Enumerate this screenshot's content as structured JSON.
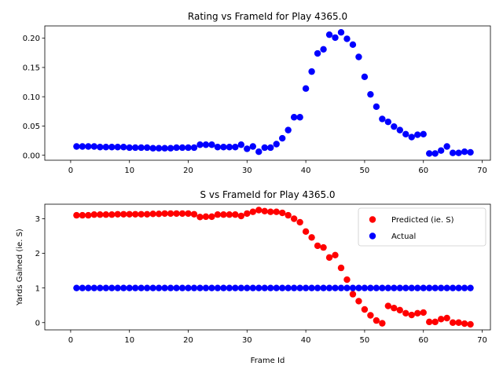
{
  "chart_data": [
    {
      "type": "scatter",
      "title": "Rating vs FrameId for Play 4365.0",
      "xlabel": "",
      "ylabel": "",
      "xlim": [
        -4.4,
        71.4
      ],
      "ylim": [
        -0.0085,
        0.221
      ],
      "xticks": [
        0,
        10,
        20,
        30,
        40,
        50,
        60,
        70
      ],
      "yticks": [
        0.0,
        0.05,
        0.1,
        0.15,
        0.2
      ],
      "ytick_labels": [
        "0.00",
        "0.05",
        "0.10",
        "0.15",
        "0.20"
      ],
      "grid": false,
      "series": [
        {
          "color": "#0000ff",
          "x": [
            1,
            2,
            3,
            4,
            5,
            6,
            7,
            8,
            9,
            10,
            11,
            12,
            13,
            14,
            15,
            16,
            17,
            18,
            19,
            20,
            21,
            22,
            23,
            24,
            25,
            26,
            27,
            28,
            29,
            30,
            31,
            32,
            33,
            34,
            35,
            36,
            37,
            38,
            39,
            40,
            41,
            42,
            43,
            44,
            45,
            46,
            47,
            48,
            49,
            50,
            51,
            52,
            53,
            54,
            55,
            56,
            57,
            58,
            59,
            60,
            61,
            62,
            63,
            64,
            65,
            66,
            67,
            68
          ],
          "y": [
            0.015,
            0.015,
            0.015,
            0.015,
            0.014,
            0.014,
            0.014,
            0.014,
            0.014,
            0.013,
            0.013,
            0.013,
            0.013,
            0.012,
            0.012,
            0.012,
            0.012,
            0.013,
            0.013,
            0.013,
            0.013,
            0.018,
            0.018,
            0.018,
            0.014,
            0.014,
            0.014,
            0.014,
            0.018,
            0.011,
            0.015,
            0.006,
            0.013,
            0.013,
            0.019,
            0.029,
            0.043,
            0.065,
            0.065,
            0.114,
            0.143,
            0.174,
            0.181,
            0.206,
            0.201,
            0.21,
            0.199,
            0.189,
            0.168,
            0.134,
            0.104,
            0.083,
            0.062,
            0.057,
            0.049,
            0.043,
            0.036,
            0.031,
            0.035,
            0.036,
            0.003,
            0.003,
            0.008,
            0.015,
            0.004,
            0.004,
            0.006,
            0.005
          ]
        }
      ]
    },
    {
      "type": "scatter",
      "title": "S vs FrameId for Play 4365.0",
      "xlabel": "Frame Id",
      "ylabel": "Yards Gained (ie. S)",
      "xlim": [
        -4.4,
        71.4
      ],
      "ylim": [
        -0.21,
        3.42
      ],
      "xticks": [
        0,
        10,
        20,
        30,
        40,
        50,
        60,
        70
      ],
      "yticks": [
        0,
        1,
        2,
        3
      ],
      "ytick_labels": [
        "0",
        "1",
        "2",
        "3"
      ],
      "grid": false,
      "legend_position": "top-right",
      "series": [
        {
          "name": "Predicted (ie. S)",
          "color": "#ff0000",
          "x": [
            1,
            2,
            3,
            4,
            5,
            6,
            7,
            8,
            9,
            10,
            11,
            12,
            13,
            14,
            15,
            16,
            17,
            18,
            19,
            20,
            21,
            22,
            23,
            24,
            25,
            26,
            27,
            28,
            29,
            30,
            31,
            32,
            33,
            34,
            35,
            36,
            37,
            38,
            39,
            40,
            41,
            42,
            43,
            44,
            45,
            46,
            47,
            48,
            49,
            50,
            51,
            52,
            53,
            54,
            55,
            56,
            57,
            58,
            59,
            60,
            61,
            62,
            63,
            64,
            65,
            66,
            67,
            68
          ],
          "y": [
            3.1,
            3.1,
            3.1,
            3.12,
            3.12,
            3.12,
            3.12,
            3.13,
            3.13,
            3.13,
            3.13,
            3.13,
            3.13,
            3.14,
            3.14,
            3.15,
            3.15,
            3.15,
            3.15,
            3.15,
            3.13,
            3.05,
            3.06,
            3.06,
            3.12,
            3.12,
            3.12,
            3.12,
            3.08,
            3.15,
            3.2,
            3.25,
            3.22,
            3.2,
            3.2,
            3.17,
            3.1,
            3.0,
            2.9,
            2.63,
            2.46,
            2.22,
            2.17,
            1.88,
            1.95,
            1.58,
            1.24,
            0.82,
            0.62,
            0.38,
            0.21,
            0.06,
            -0.02,
            0.48,
            0.42,
            0.36,
            0.27,
            0.22,
            0.27,
            0.29,
            0.02,
            0.02,
            0.1,
            0.13,
            0.0,
            0.0,
            -0.03,
            -0.05
          ]
        },
        {
          "name": "Actual",
          "color": "#0000ff",
          "x": [
            1,
            2,
            3,
            4,
            5,
            6,
            7,
            8,
            9,
            10,
            11,
            12,
            13,
            14,
            15,
            16,
            17,
            18,
            19,
            20,
            21,
            22,
            23,
            24,
            25,
            26,
            27,
            28,
            29,
            30,
            31,
            32,
            33,
            34,
            35,
            36,
            37,
            38,
            39,
            40,
            41,
            42,
            43,
            44,
            45,
            46,
            47,
            48,
            49,
            50,
            51,
            52,
            53,
            54,
            55,
            56,
            57,
            58,
            59,
            60,
            61,
            62,
            63,
            64,
            65,
            66,
            67,
            68
          ],
          "y": [
            1,
            1,
            1,
            1,
            1,
            1,
            1,
            1,
            1,
            1,
            1,
            1,
            1,
            1,
            1,
            1,
            1,
            1,
            1,
            1,
            1,
            1,
            1,
            1,
            1,
            1,
            1,
            1,
            1,
            1,
            1,
            1,
            1,
            1,
            1,
            1,
            1,
            1,
            1,
            1,
            1,
            1,
            1,
            1,
            1,
            1,
            1,
            1,
            1,
            1,
            1,
            1,
            1,
            1,
            1,
            1,
            1,
            1,
            1,
            1,
            1,
            1,
            1,
            1,
            1,
            1,
            1,
            1
          ]
        }
      ]
    }
  ]
}
